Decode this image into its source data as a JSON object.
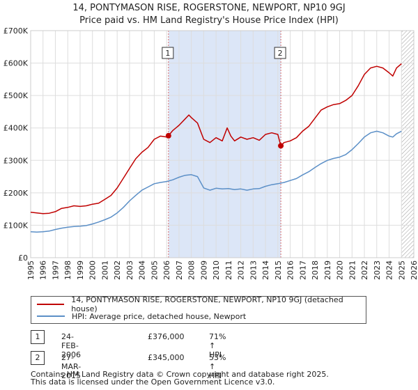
{
  "chart_data": {
    "type": "line",
    "title": "14, PONTYMASON RISE, ROGERSTONE, NEWPORT, NP10 9GJ",
    "subtitle": "Price paid vs. HM Land Registry's House Price Index (HPI)",
    "xlabel": "",
    "ylabel": "",
    "xlim": [
      1995,
      2026
    ],
    "ylim": [
      0,
      700000
    ],
    "y_ticks": [
      {
        "value": 0,
        "label": "£0"
      },
      {
        "value": 100000,
        "label": "£100K"
      },
      {
        "value": 200000,
        "label": "£200K"
      },
      {
        "value": 300000,
        "label": "£300K"
      },
      {
        "value": 400000,
        "label": "£400K"
      },
      {
        "value": 500000,
        "label": "£500K"
      },
      {
        "value": 600000,
        "label": "£600K"
      },
      {
        "value": 700000,
        "label": "£700K"
      }
    ],
    "x_ticks": [
      "1995",
      "1996",
      "1997",
      "1998",
      "1999",
      "2000",
      "2001",
      "2002",
      "2003",
      "2004",
      "2005",
      "2006",
      "2007",
      "2008",
      "2009",
      "2010",
      "2011",
      "2012",
      "2013",
      "2014",
      "2015",
      "2016",
      "2017",
      "2018",
      "2019",
      "2020",
      "2021",
      "2022",
      "2023",
      "2024",
      "2025",
      "2026"
    ],
    "grid": true,
    "shaded_band": {
      "from": 2006.15,
      "to": 2015.24,
      "color": "#dce6f7"
    },
    "future_hatch_from": 2025.0,
    "colors": {
      "property": "#c00000",
      "hpi": "#5b8fc7",
      "marker": "#c00000",
      "vline": "#d46a6a"
    },
    "series": [
      {
        "name": "14, PONTYMASON RISE, ROGERSTONE, NEWPORT, NP10 9GJ (detached house)",
        "color": "#c00000",
        "points": [
          [
            1995.0,
            140000
          ],
          [
            1995.5,
            138000
          ],
          [
            1996.0,
            136000
          ],
          [
            1996.5,
            137000
          ],
          [
            1997.0,
            142000
          ],
          [
            1997.5,
            152000
          ],
          [
            1998.0,
            155000
          ],
          [
            1998.5,
            160000
          ],
          [
            1999.0,
            158000
          ],
          [
            1999.5,
            160000
          ],
          [
            2000.0,
            165000
          ],
          [
            2000.5,
            168000
          ],
          [
            2001.0,
            180000
          ],
          [
            2001.5,
            192000
          ],
          [
            2002.0,
            215000
          ],
          [
            2002.5,
            245000
          ],
          [
            2003.0,
            275000
          ],
          [
            2003.5,
            305000
          ],
          [
            2004.0,
            325000
          ],
          [
            2004.5,
            340000
          ],
          [
            2005.0,
            365000
          ],
          [
            2005.5,
            375000
          ],
          [
            2006.0,
            372000
          ],
          [
            2006.15,
            376000
          ],
          [
            2006.5,
            392000
          ],
          [
            2007.0,
            408000
          ],
          [
            2007.5,
            428000
          ],
          [
            2007.8,
            440000
          ],
          [
            2008.0,
            432000
          ],
          [
            2008.5,
            415000
          ],
          [
            2009.0,
            365000
          ],
          [
            2009.5,
            355000
          ],
          [
            2010.0,
            370000
          ],
          [
            2010.5,
            360000
          ],
          [
            2010.9,
            400000
          ],
          [
            2011.2,
            375000
          ],
          [
            2011.5,
            360000
          ],
          [
            2012.0,
            372000
          ],
          [
            2012.5,
            365000
          ],
          [
            2013.0,
            370000
          ],
          [
            2013.5,
            362000
          ],
          [
            2014.0,
            380000
          ],
          [
            2014.5,
            385000
          ],
          [
            2015.0,
            380000
          ],
          [
            2015.24,
            345000
          ],
          [
            2015.5,
            355000
          ],
          [
            2016.0,
            360000
          ],
          [
            2016.5,
            370000
          ],
          [
            2017.0,
            390000
          ],
          [
            2017.5,
            405000
          ],
          [
            2018.0,
            430000
          ],
          [
            2018.5,
            455000
          ],
          [
            2019.0,
            465000
          ],
          [
            2019.5,
            472000
          ],
          [
            2020.0,
            475000
          ],
          [
            2020.5,
            485000
          ],
          [
            2021.0,
            500000
          ],
          [
            2021.5,
            530000
          ],
          [
            2022.0,
            565000
          ],
          [
            2022.5,
            585000
          ],
          [
            2023.0,
            590000
          ],
          [
            2023.5,
            585000
          ],
          [
            2024.0,
            570000
          ],
          [
            2024.3,
            560000
          ],
          [
            2024.6,
            585000
          ],
          [
            2025.0,
            598000
          ]
        ]
      },
      {
        "name": "HPI: Average price, detached house, Newport",
        "color": "#5b8fc7",
        "points": [
          [
            1995.0,
            80000
          ],
          [
            1995.5,
            79000
          ],
          [
            1996.0,
            80000
          ],
          [
            1996.5,
            82000
          ],
          [
            1997.0,
            87000
          ],
          [
            1997.5,
            91000
          ],
          [
            1998.0,
            94000
          ],
          [
            1998.5,
            96000
          ],
          [
            1999.0,
            97000
          ],
          [
            1999.5,
            99000
          ],
          [
            2000.0,
            104000
          ],
          [
            2000.5,
            110000
          ],
          [
            2001.0,
            117000
          ],
          [
            2001.5,
            125000
          ],
          [
            2002.0,
            138000
          ],
          [
            2002.5,
            155000
          ],
          [
            2003.0,
            175000
          ],
          [
            2003.5,
            192000
          ],
          [
            2004.0,
            208000
          ],
          [
            2004.5,
            218000
          ],
          [
            2005.0,
            228000
          ],
          [
            2005.5,
            232000
          ],
          [
            2006.0,
            235000
          ],
          [
            2006.5,
            240000
          ],
          [
            2007.0,
            248000
          ],
          [
            2007.5,
            254000
          ],
          [
            2008.0,
            256000
          ],
          [
            2008.5,
            250000
          ],
          [
            2009.0,
            215000
          ],
          [
            2009.5,
            208000
          ],
          [
            2010.0,
            214000
          ],
          [
            2010.5,
            212000
          ],
          [
            2011.0,
            213000
          ],
          [
            2011.5,
            210000
          ],
          [
            2012.0,
            212000
          ],
          [
            2012.5,
            208000
          ],
          [
            2013.0,
            212000
          ],
          [
            2013.5,
            213000
          ],
          [
            2014.0,
            220000
          ],
          [
            2014.5,
            225000
          ],
          [
            2015.0,
            228000
          ],
          [
            2015.5,
            232000
          ],
          [
            2016.0,
            238000
          ],
          [
            2016.5,
            244000
          ],
          [
            2017.0,
            255000
          ],
          [
            2017.5,
            265000
          ],
          [
            2018.0,
            278000
          ],
          [
            2018.5,
            290000
          ],
          [
            2019.0,
            300000
          ],
          [
            2019.5,
            306000
          ],
          [
            2020.0,
            310000
          ],
          [
            2020.5,
            318000
          ],
          [
            2021.0,
            333000
          ],
          [
            2021.5,
            352000
          ],
          [
            2022.0,
            372000
          ],
          [
            2022.5,
            385000
          ],
          [
            2023.0,
            390000
          ],
          [
            2023.5,
            385000
          ],
          [
            2024.0,
            375000
          ],
          [
            2024.3,
            372000
          ],
          [
            2024.6,
            382000
          ],
          [
            2025.0,
            390000
          ]
        ]
      }
    ],
    "annotations": [
      {
        "label": "1",
        "x": 2006.15,
        "y": 376000
      },
      {
        "label": "2",
        "x": 2015.24,
        "y": 345000
      }
    ]
  },
  "legend": {
    "property_label": "14, PONTYMASON RISE, ROGERSTONE, NEWPORT, NP10 9GJ (detached house)",
    "hpi_label": "HPI: Average price, detached house, Newport"
  },
  "sales": [
    {
      "num": "1",
      "date": "24-FEB-2006",
      "price": "£376,000",
      "hpi": "71% ↑ HPI"
    },
    {
      "num": "2",
      "date": "27-MAR-2015",
      "price": "£345,000",
      "hpi": "53% ↑ HPI"
    }
  ],
  "footer": {
    "line1": "Contains HM Land Registry data © Crown copyright and database right 2025.",
    "line2": "This data is licensed under the Open Government Licence v3.0."
  }
}
